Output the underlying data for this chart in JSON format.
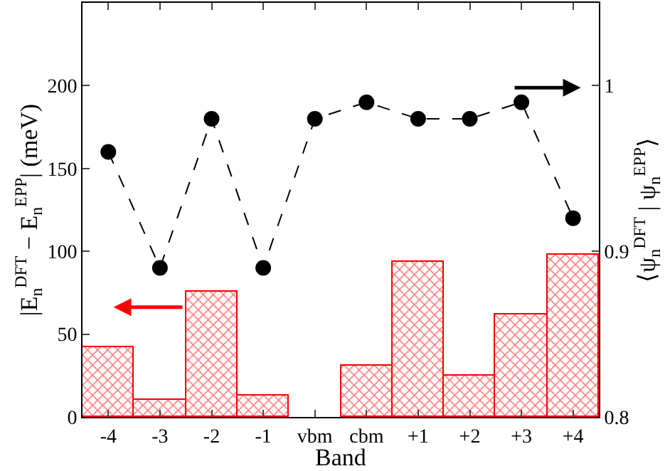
{
  "chart_data": {
    "type": "bar",
    "xlabel": "Band",
    "ylabel": "|E$_{n}$$^{DFT}$ − E$_{n}$$^{EPP}$| (meV)",
    "y2label": "⟨ψ$_{n}$$^{DFT}$ | ψ$_{n}$$^{EPP}$⟩",
    "categories": [
      "-4",
      "-3",
      "-2",
      "-1",
      "vbm",
      "cbm",
      "+1",
      "+2",
      "+3",
      "+4"
    ],
    "series": [
      {
        "color": "#ff0000",
        "values": [
          42,
          10,
          76,
          13,
          null,
          31,
          94,
          25,
          62,
          98
        ]
      },
      {
        "type": "line",
        "axis": "y2",
        "color": "#000000",
        "marker": "circle",
        "line_style": "dashed",
        "values": [
          0.96,
          0.89,
          0.98,
          0.89,
          0.98,
          0.99,
          0.98,
          0.98,
          0.99,
          0.92
        ]
      }
    ],
    "ylim": [
      0,
      250
    ],
    "yticks": [
      0,
      50,
      100,
      150,
      200
    ],
    "y2lim": [
      0.8,
      1.05
    ],
    "y2ticks": [
      0.8,
      0.9,
      {
        "value": 1.0,
        "label": "1"
      }
    ]
  }
}
